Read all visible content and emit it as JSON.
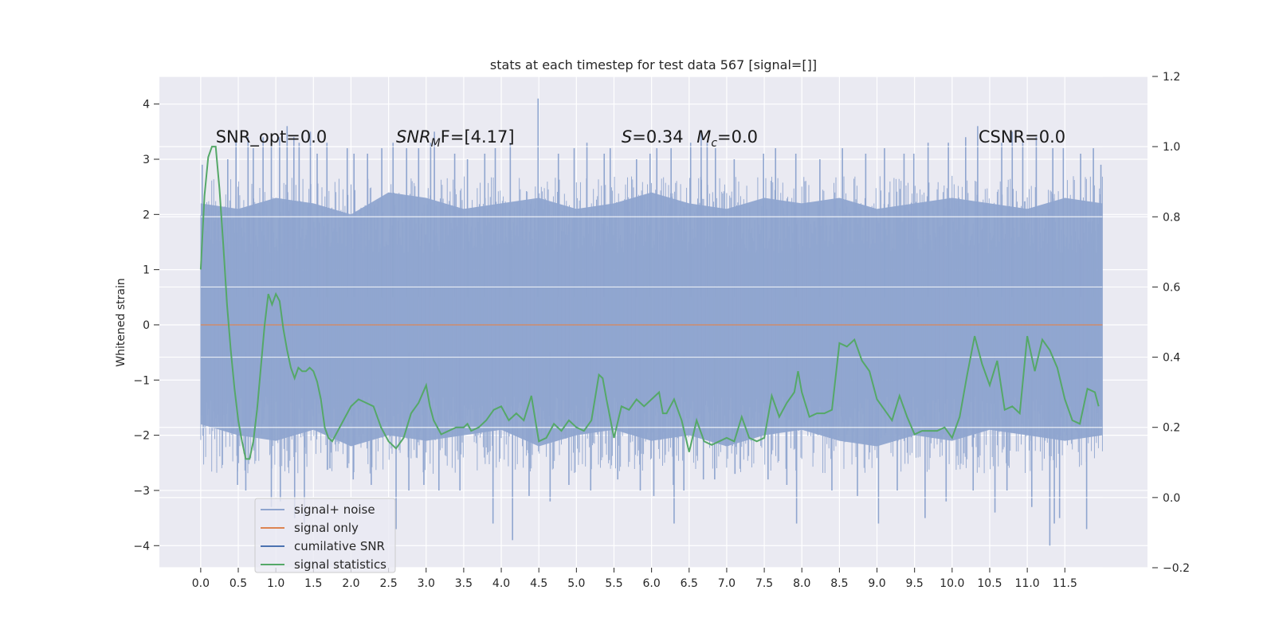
{
  "chart_data": {
    "type": "line",
    "title": "stats at each timestep for test data 567 [signal=[]]",
    "ylabel": "Whitened strain",
    "xlim": [
      -0.55,
      12.6
    ],
    "ylim": [
      -4.4,
      4.5
    ],
    "y2lim": [
      -0.2,
      1.2
    ],
    "xticks": [
      0.0,
      0.5,
      1.0,
      1.5,
      2.0,
      2.5,
      3.0,
      3.5,
      4.0,
      4.5,
      5.0,
      5.5,
      6.0,
      6.5,
      7.0,
      7.5,
      8.0,
      8.5,
      9.0,
      9.5,
      10.0,
      10.5,
      11.0,
      11.5
    ],
    "xtick_labels": [
      "0.0",
      "0.5",
      "1.0",
      "1.5",
      "2.0",
      "2.5",
      "3.0",
      "3.5",
      "4.0",
      "4.5",
      "5.0",
      "5.5",
      "6.0",
      "6.5",
      "7.0",
      "7.5",
      "8.0",
      "8.5",
      "9.0",
      "9.5",
      "10.0",
      "10.5",
      "11.0",
      "11.5"
    ],
    "yticks": [
      -4,
      -3,
      -2,
      -1,
      0,
      1,
      2,
      3,
      4
    ],
    "ytick_labels": [
      "−4",
      "−3",
      "−2",
      "−1",
      "0",
      "1",
      "2",
      "3",
      "4"
    ],
    "y2ticks": [
      -0.2,
      0.0,
      0.2,
      0.4,
      0.6,
      0.8,
      1.0,
      1.2
    ],
    "y2tick_labels": [
      "−0.2",
      "0.0",
      "0.2",
      "0.4",
      "0.6",
      "0.8",
      "1.0",
      "1.2"
    ],
    "grid": true,
    "legend_position": "lower-left",
    "annotations": [
      {
        "text": "SNR_opt=0.0",
        "x": 0.2,
        "y": 3.3
      },
      {
        "sym": "SNR",
        "sub": "M",
        "rest": "F=[4.17]",
        "x": 2.6,
        "y": 3.3
      },
      {
        "sym": "S",
        "rest": "=0.34",
        "x": 5.6,
        "y": 3.3
      },
      {
        "sym": "M",
        "sub": "c",
        "rest": "=0.0",
        "x": 6.6,
        "y": 3.3
      },
      {
        "text": "CSNR=0.0",
        "x": 10.35,
        "y": 3.3
      }
    ],
    "noise_series": {
      "name": "signal+ noise",
      "color": "#8fa5cf",
      "x_start": 0.0,
      "x_end": 12.0,
      "band_upper": [
        2.2,
        2.1,
        2.3,
        2.2,
        2.0,
        2.4,
        2.3,
        2.1,
        2.2,
        2.3,
        2.1,
        2.2,
        2.4,
        2.2,
        2.1,
        2.3,
        2.2,
        2.3,
        2.1,
        2.2,
        2.3,
        2.2,
        2.1,
        2.3,
        2.2
      ],
      "band_lower": [
        -1.8,
        -2.0,
        -2.1,
        -1.9,
        -2.2,
        -2.0,
        -2.1,
        -2.0,
        -1.9,
        -2.2,
        -2.0,
        -1.9,
        -2.1,
        -2.0,
        -2.2,
        -2.0,
        -1.9,
        -2.1,
        -2.2,
        -2.0,
        -2.1,
        -1.9,
        -2.0,
        -2.1,
        -2.0
      ],
      "spike_x": [
        0.02,
        0.36,
        0.47,
        0.63,
        0.7,
        0.83,
        0.94,
        1.05,
        1.15,
        1.24,
        1.31,
        1.46,
        1.55,
        1.68,
        1.95,
        2.04,
        2.22,
        2.41,
        2.56,
        2.74,
        2.9,
        3.06,
        3.11,
        3.38,
        3.55,
        3.78,
        3.92,
        4.12,
        4.49,
        4.76,
        4.97,
        5.14,
        5.37,
        5.45,
        5.8,
        5.98,
        6.07,
        6.26,
        6.52,
        6.66,
        6.74,
        6.85,
        7.1,
        7.49,
        7.65,
        7.92,
        8.24,
        8.54,
        8.85,
        9.1,
        9.36,
        9.49,
        9.68,
        9.95,
        10.18,
        10.34,
        10.66,
        10.8,
        10.94,
        11.12,
        11.34,
        11.48,
        11.71,
        11.88,
        11.98
      ],
      "spike_y": [
        2.9,
        3.0,
        3.4,
        3.4,
        3.2,
        3.4,
        3.3,
        3.4,
        3.6,
        3.4,
        3.3,
        3.5,
        3.1,
        3.3,
        3.2,
        3.1,
        3.1,
        3.2,
        3.3,
        3.2,
        3.2,
        3.3,
        3.5,
        3.1,
        3.0,
        3.1,
        3.2,
        3.3,
        4.1,
        3.1,
        3.2,
        3.3,
        3.1,
        3.2,
        3.0,
        3.1,
        3.2,
        3.2,
        3.3,
        3.5,
        3.3,
        3.2,
        3.0,
        3.1,
        3.2,
        3.1,
        3.0,
        3.2,
        3.1,
        3.2,
        3.1,
        3.1,
        3.3,
        3.3,
        3.4,
        3.6,
        3.3,
        3.5,
        3.3,
        3.4,
        3.2,
        3.2,
        3.1,
        3.2,
        2.9
      ],
      "dip_x": [
        0.49,
        0.6,
        0.94,
        1.06,
        1.25,
        1.38,
        1.72,
        2.03,
        2.27,
        2.6,
        2.77,
        2.97,
        3.17,
        3.45,
        3.89,
        4.15,
        4.37,
        4.65,
        4.9,
        5.19,
        5.55,
        5.85,
        6.03,
        6.29,
        6.3,
        6.43,
        6.69,
        6.84,
        7.11,
        7.55,
        7.8,
        7.93,
        8.4,
        8.74,
        9.02,
        9.27,
        9.64,
        9.92,
        10.28,
        10.57,
        10.73,
        11.06,
        11.3,
        11.36,
        11.43,
        11.79
      ],
      "dip_y": [
        -2.9,
        -3.0,
        -3.3,
        -3.2,
        -3.5,
        -3.6,
        -2.6,
        -2.8,
        -2.9,
        -3.7,
        -3.0,
        -2.9,
        -3.0,
        -3.0,
        -3.6,
        -3.9,
        -3.1,
        -3.2,
        -2.9,
        -3.0,
        -2.8,
        -3.0,
        -3.1,
        -2.9,
        -3.6,
        -3.0,
        -2.8,
        -2.8,
        -2.7,
        -2.8,
        -2.9,
        -3.6,
        -3.0,
        -3.1,
        -3.6,
        -3.0,
        -3.5,
        -3.2,
        -3.0,
        -3.4,
        -3.0,
        -3.3,
        -4.0,
        -3.6,
        -3.5,
        -3.7
      ]
    },
    "series": [
      {
        "name": "signal only",
        "color": "#dd8452",
        "axis": "left",
        "x": [
          0.0,
          12.0
        ],
        "y": [
          0.0,
          0.0
        ]
      },
      {
        "name": "cumilative SNR",
        "color": "#4c72b0",
        "axis": "left",
        "x": [],
        "y": []
      },
      {
        "name": "signal statistics",
        "color": "#55a868",
        "axis": "right",
        "x": [
          0.0,
          0.05,
          0.1,
          0.15,
          0.2,
          0.25,
          0.3,
          0.35,
          0.4,
          0.45,
          0.5,
          0.55,
          0.6,
          0.65,
          0.7,
          0.75,
          0.8,
          0.85,
          0.9,
          0.95,
          1.0,
          1.05,
          1.1,
          1.15,
          1.2,
          1.25,
          1.3,
          1.35,
          1.4,
          1.45,
          1.5,
          1.55,
          1.6,
          1.65,
          1.7,
          1.75,
          1.8,
          1.85,
          1.9,
          1.95,
          2.0,
          2.1,
          2.2,
          2.3,
          2.4,
          2.5,
          2.6,
          2.7,
          2.8,
          2.9,
          3.0,
          3.05,
          3.1,
          3.2,
          3.3,
          3.4,
          3.5,
          3.55,
          3.6,
          3.7,
          3.8,
          3.9,
          4.0,
          4.1,
          4.2,
          4.3,
          4.4,
          4.5,
          4.6,
          4.7,
          4.8,
          4.9,
          5.0,
          5.1,
          5.2,
          5.3,
          5.35,
          5.4,
          5.5,
          5.6,
          5.7,
          5.8,
          5.9,
          6.0,
          6.1,
          6.15,
          6.2,
          6.3,
          6.4,
          6.5,
          6.6,
          6.7,
          6.8,
          6.9,
          7.0,
          7.1,
          7.2,
          7.3,
          7.4,
          7.5,
          7.6,
          7.7,
          7.8,
          7.9,
          7.95,
          8.0,
          8.1,
          8.2,
          8.3,
          8.4,
          8.5,
          8.6,
          8.7,
          8.8,
          8.9,
          9.0,
          9.1,
          9.2,
          9.3,
          9.4,
          9.5,
          9.6,
          9.7,
          9.8,
          9.9,
          10.0,
          10.1,
          10.2,
          10.3,
          10.4,
          10.5,
          10.6,
          10.7,
          10.8,
          10.9,
          11.0,
          11.1,
          11.2,
          11.3,
          11.4,
          11.5,
          11.6,
          11.7,
          11.8,
          11.9,
          11.95
        ],
        "y": [
          0.65,
          0.86,
          0.97,
          1.0,
          1.0,
          0.88,
          0.72,
          0.55,
          0.42,
          0.31,
          0.22,
          0.16,
          0.11,
          0.11,
          0.16,
          0.25,
          0.37,
          0.49,
          0.58,
          0.55,
          0.58,
          0.56,
          0.48,
          0.42,
          0.37,
          0.34,
          0.37,
          0.36,
          0.36,
          0.37,
          0.36,
          0.33,
          0.28,
          0.2,
          0.17,
          0.16,
          0.18,
          0.2,
          0.22,
          0.24,
          0.26,
          0.28,
          0.27,
          0.26,
          0.2,
          0.16,
          0.14,
          0.17,
          0.24,
          0.27,
          0.32,
          0.26,
          0.22,
          0.18,
          0.19,
          0.2,
          0.2,
          0.21,
          0.19,
          0.2,
          0.22,
          0.25,
          0.26,
          0.22,
          0.24,
          0.22,
          0.29,
          0.16,
          0.17,
          0.21,
          0.19,
          0.22,
          0.2,
          0.19,
          0.22,
          0.35,
          0.34,
          0.28,
          0.17,
          0.26,
          0.25,
          0.28,
          0.26,
          0.28,
          0.3,
          0.24,
          0.24,
          0.28,
          0.22,
          0.13,
          0.22,
          0.16,
          0.15,
          0.16,
          0.17,
          0.16,
          0.23,
          0.17,
          0.16,
          0.17,
          0.29,
          0.23,
          0.27,
          0.3,
          0.36,
          0.3,
          0.23,
          0.24,
          0.24,
          0.25,
          0.44,
          0.43,
          0.45,
          0.39,
          0.36,
          0.28,
          0.25,
          0.22,
          0.29,
          0.23,
          0.18,
          0.19,
          0.19,
          0.19,
          0.2,
          0.17,
          0.23,
          0.35,
          0.46,
          0.38,
          0.32,
          0.39,
          0.25,
          0.26,
          0.24,
          0.46,
          0.36,
          0.45,
          0.42,
          0.37,
          0.28,
          0.22,
          0.21,
          0.31,
          0.3,
          0.26
        ]
      }
    ]
  }
}
